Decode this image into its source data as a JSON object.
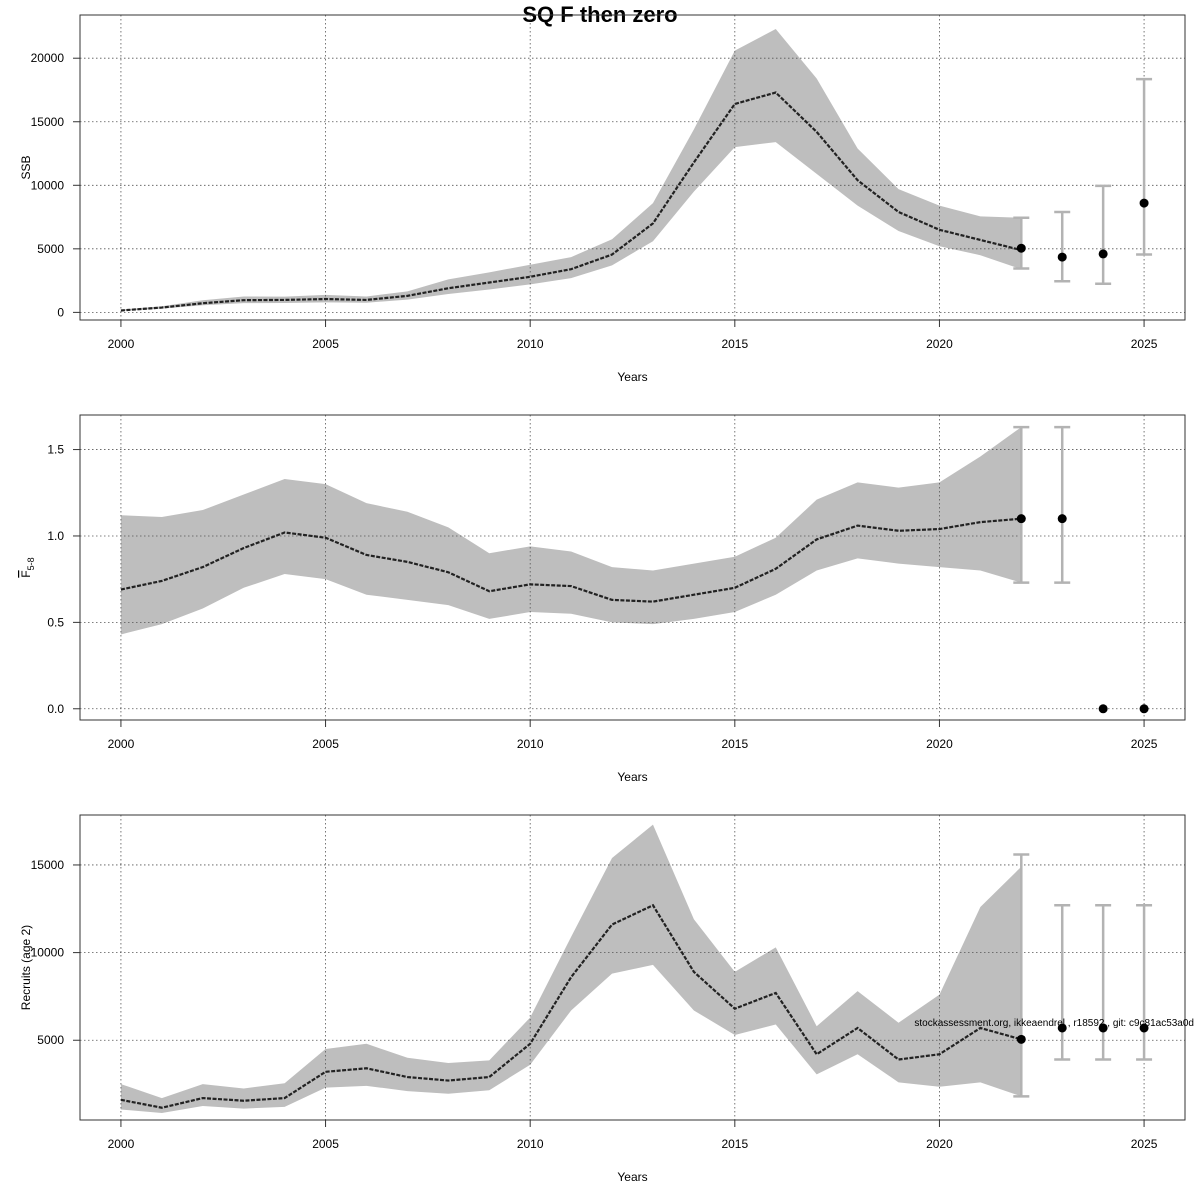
{
  "title": "SQ F then zero",
  "footer_note": "stockassessment.org, ikkeaendrel , r18592 , git: c9c81ac53a0d",
  "colors": {
    "band": "#bebebe",
    "line": "#222222",
    "errorbar": "#b3b3b3",
    "grid": "#555555",
    "point": "#000000"
  },
  "chart_data": [
    {
      "type": "line",
      "ylabel": "SSB",
      "xlabel": "Years",
      "xlim": [
        1999.0,
        2026.0
      ],
      "ylim": [
        -600,
        23400
      ],
      "xticks": [
        2000,
        2005,
        2010,
        2015,
        2020,
        2025
      ],
      "yticks": [
        0,
        5000,
        10000,
        15000,
        20000
      ],
      "ytick_labels": [
        "0",
        "5000",
        "10000",
        "15000",
        "20000"
      ],
      "grid": true,
      "x": [
        2000,
        2001,
        2002,
        2003,
        2004,
        2005,
        2006,
        2007,
        2008,
        2009,
        2010,
        2011,
        2012,
        2013,
        2014,
        2015,
        2016,
        2017,
        2018,
        2019,
        2020,
        2021,
        2022
      ],
      "estimate": [
        150,
        380,
        720,
        960,
        980,
        1050,
        980,
        1300,
        1900,
        2350,
        2800,
        3400,
        4550,
        7000,
        11800,
        16400,
        17300,
        14200,
        10400,
        7900,
        6500,
        5700,
        4900
      ],
      "lower": [
        110,
        300,
        560,
        730,
        740,
        790,
        760,
        1000,
        1450,
        1800,
        2200,
        2700,
        3700,
        5600,
        9500,
        13000,
        13400,
        10900,
        8400,
        6400,
        5200,
        4500,
        3400
      ],
      "upper": [
        210,
        480,
        950,
        1250,
        1240,
        1380,
        1250,
        1650,
        2600,
        3150,
        3750,
        4350,
        5750,
        8600,
        14400,
        20600,
        22300,
        18400,
        12900,
        9700,
        8400,
        7550,
        7450
      ],
      "projection": {
        "x": [
          2022,
          2023,
          2024,
          2025
        ],
        "estimate": [
          5050,
          4350,
          4600,
          8600
        ],
        "lower": [
          3450,
          2450,
          2250,
          4550
        ],
        "upper": [
          7450,
          7900,
          9950,
          18350
        ]
      }
    },
    {
      "type": "line",
      "ylabel_main": "F",
      "ylabel_sub": "5-8",
      "xlabel": "Years",
      "xlim": [
        1999.0,
        2026.0
      ],
      "ylim": [
        -0.065,
        1.7
      ],
      "xticks": [
        2000,
        2005,
        2010,
        2015,
        2020,
        2025
      ],
      "yticks": [
        0.0,
        0.5,
        1.0,
        1.5
      ],
      "ytick_labels": [
        "0.0",
        "0.5",
        "1.0",
        "1.5"
      ],
      "grid": true,
      "x": [
        2000,
        2001,
        2002,
        2003,
        2004,
        2005,
        2006,
        2007,
        2008,
        2009,
        2010,
        2011,
        2012,
        2013,
        2014,
        2015,
        2016,
        2017,
        2018,
        2019,
        2020,
        2021,
        2022
      ],
      "estimate": [
        0.69,
        0.74,
        0.82,
        0.93,
        1.02,
        0.99,
        0.89,
        0.85,
        0.79,
        0.68,
        0.72,
        0.71,
        0.63,
        0.62,
        0.66,
        0.7,
        0.81,
        0.98,
        1.06,
        1.03,
        1.04,
        1.08,
        1.1
      ],
      "lower": [
        0.43,
        0.49,
        0.58,
        0.7,
        0.78,
        0.75,
        0.66,
        0.63,
        0.6,
        0.52,
        0.56,
        0.55,
        0.5,
        0.49,
        0.52,
        0.56,
        0.66,
        0.8,
        0.87,
        0.84,
        0.82,
        0.8,
        0.73
      ],
      "upper": [
        1.12,
        1.11,
        1.15,
        1.24,
        1.33,
        1.3,
        1.19,
        1.14,
        1.05,
        0.9,
        0.94,
        0.91,
        0.82,
        0.8,
        0.84,
        0.88,
        0.99,
        1.21,
        1.31,
        1.28,
        1.31,
        1.46,
        1.63
      ],
      "projection": {
        "x": [
          2022,
          2023,
          2024,
          2025
        ],
        "estimate": [
          1.1,
          1.1,
          0.0,
          0.0
        ],
        "lower": [
          0.73,
          0.73,
          null,
          null
        ],
        "upper": [
          1.63,
          1.63,
          null,
          null
        ]
      }
    },
    {
      "type": "line",
      "ylabel": "Recruits (age 2)",
      "xlabel": "Years",
      "xlim": [
        1999.0,
        2026.0
      ],
      "ylim": [
        450,
        17850
      ],
      "xticks": [
        2000,
        2005,
        2010,
        2015,
        2020,
        2025
      ],
      "yticks": [
        5000,
        10000,
        15000
      ],
      "ytick_labels": [
        "5000",
        "10000",
        "15000"
      ],
      "grid": true,
      "x": [
        2000,
        2001,
        2002,
        2003,
        2004,
        2005,
        2006,
        2007,
        2008,
        2009,
        2010,
        2011,
        2012,
        2013,
        2014,
        2015,
        2016,
        2017,
        2018,
        2019,
        2020,
        2021,
        2022
      ],
      "estimate": [
        1600,
        1150,
        1700,
        1550,
        1700,
        3200,
        3400,
        2900,
        2700,
        2900,
        4800,
        8600,
        11600,
        12700,
        8900,
        6800,
        7700,
        4200,
        5700,
        3900,
        4200,
        5700,
        5050
      ],
      "lower": [
        1050,
        850,
        1250,
        1100,
        1200,
        2300,
        2400,
        2100,
        1950,
        2150,
        3600,
        6700,
        8800,
        9300,
        6700,
        5300,
        5900,
        3050,
        4200,
        2600,
        2350,
        2600,
        1800
      ],
      "upper": [
        2500,
        1700,
        2500,
        2250,
        2550,
        4500,
        4800,
        4000,
        3700,
        3850,
        6300,
        10900,
        15400,
        17300,
        11900,
        8900,
        10300,
        5800,
        7800,
        6000,
        7600,
        12600,
        14900
      ],
      "projection": {
        "x": [
          2022,
          2023,
          2024,
          2025
        ],
        "estimate": [
          5050,
          5700,
          5700,
          5700
        ],
        "lower": [
          1800,
          3900,
          3900,
          3900
        ],
        "upper": [
          15600,
          12700,
          12700,
          12700
        ]
      }
    }
  ]
}
